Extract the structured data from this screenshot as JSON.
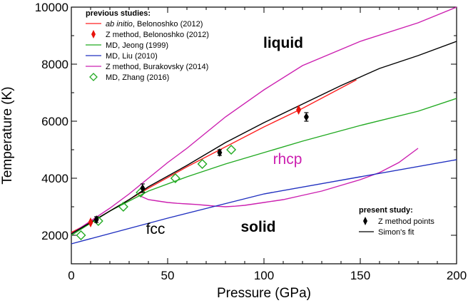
{
  "chart_data": {
    "type": "line",
    "xlabel": "Pressure (GPa)",
    "ylabel": "Temperature (K)",
    "xlim": [
      0,
      200
    ],
    "ylim": [
      1000,
      10000
    ],
    "x_ticks": [
      "0",
      "50",
      "100",
      "150",
      "200"
    ],
    "y_ticks": [
      "2000",
      "4000",
      "6000",
      "8000",
      "10000"
    ],
    "grid": false,
    "legend_placement": "top-left",
    "legend_title": "previous studies:",
    "legend_present_title": "present study:",
    "series": [
      {
        "name_prefix": "ab initio",
        "name_suffix": ", Belonoshko (2012)",
        "kind": "line",
        "color": "#ff2020",
        "x": [
          0,
          10,
          20,
          40,
          60,
          80,
          100,
          120,
          148
        ],
        "y": [
          2100,
          2450,
          2850,
          3650,
          4400,
          5100,
          5800,
          6450,
          7450
        ]
      },
      {
        "name": "Z method, Belonoshko (2012)",
        "kind": "marker",
        "marker": "thin-diamond",
        "color": "#e8140c",
        "x": [
          10,
          118
        ],
        "y": [
          2450,
          6400
        ]
      },
      {
        "name": "MD, Jeong (1999)",
        "kind": "line",
        "color": "#22aa22",
        "x": [
          0,
          20,
          40,
          60,
          80,
          100,
          120,
          150,
          180,
          200
        ],
        "y": [
          2000,
          2850,
          3550,
          4050,
          4500,
          4900,
          5300,
          5850,
          6350,
          6800
        ]
      },
      {
        "name": "MD, Liu (2010)",
        "kind": "line",
        "color": "#2030c0",
        "x": [
          0,
          50,
          100,
          150,
          200
        ],
        "y": [
          1700,
          2600,
          3450,
          4050,
          4650
        ]
      },
      {
        "name": "Z method, Burakovsky (2014)",
        "kind": "line",
        "color": "#cc20b0",
        "x": [
          0,
          10,
          20,
          30,
          40,
          50,
          60,
          70,
          80,
          100,
          120,
          150,
          180,
          200
        ],
        "y": [
          2050,
          2500,
          2950,
          3450,
          4000,
          4550,
          5050,
          5600,
          6150,
          7100,
          7950,
          8800,
          9450,
          10000
        ]
      },
      {
        "name": "MD, Zhang (2016)",
        "kind": "marker",
        "marker": "open-square-diamond",
        "color": "#22aa22",
        "x": [
          5,
          14,
          27,
          36,
          54,
          68,
          83
        ],
        "y": [
          2000,
          2500,
          3000,
          3500,
          4000,
          4500,
          5000
        ]
      }
    ],
    "present_study": [
      {
        "name": "Z method points",
        "kind": "marker",
        "marker": "filled-diamond-errorbar",
        "color": "#000000",
        "x": [
          13,
          37,
          77,
          122
        ],
        "y": [
          2550,
          3650,
          4900,
          6150
        ],
        "yerr": [
          100,
          150,
          100,
          150
        ]
      },
      {
        "name": "Simon's fit",
        "kind": "line",
        "color": "#000000",
        "x": [
          0,
          10,
          20,
          30,
          40,
          60,
          80,
          100,
          120,
          140,
          160,
          180,
          200
        ],
        "y": [
          2050,
          2450,
          2850,
          3250,
          3700,
          4450,
          5250,
          5950,
          6600,
          7250,
          7850,
          8300,
          8800
        ]
      }
    ],
    "phase_boundary": {
      "color": "#cc20b0",
      "x": [
        35,
        40,
        45,
        50,
        55,
        60,
        65,
        70,
        75,
        80,
        85,
        90,
        95,
        100,
        110,
        120,
        130,
        140,
        150,
        160,
        170,
        180
      ],
      "y": [
        3400,
        3250,
        3200,
        3150,
        3120,
        3100,
        3080,
        3050,
        3020,
        3000,
        3020,
        3050,
        3100,
        3150,
        3250,
        3400,
        3550,
        3750,
        3950,
        4200,
        4550,
        5050
      ]
    },
    "annotations": {
      "liquid": "liquid",
      "rhcp": "rhcp",
      "fcc": "fcc",
      "solid": "solid"
    }
  }
}
